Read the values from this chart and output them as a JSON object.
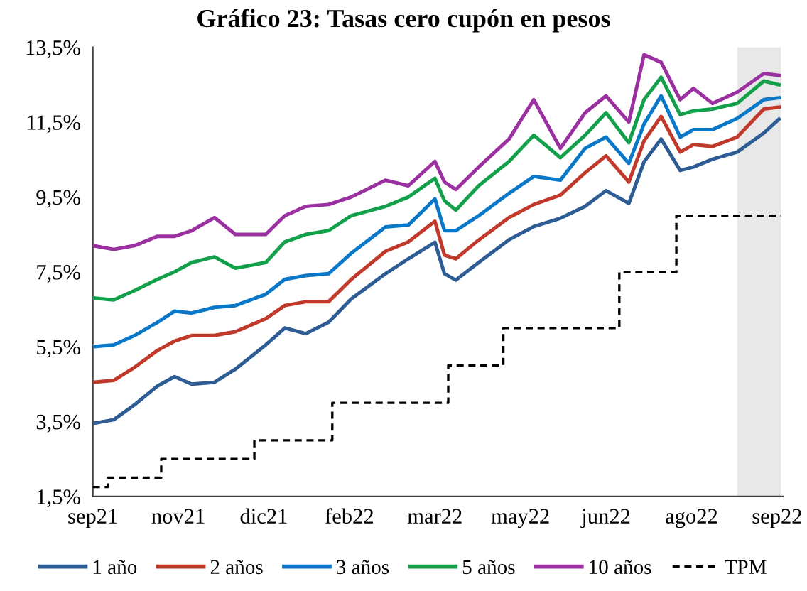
{
  "chart_data": {
    "type": "line",
    "title": "Gráfico 23: Tasas cero cupón en pesos",
    "xlim": [
      "2021-09-28",
      "2022-09-26"
    ],
    "xticks": [
      {
        "value": "2021-09-28",
        "label": "sep21"
      },
      {
        "value": "2021-11-12",
        "label": "nov21"
      },
      {
        "value": "2021-12-27",
        "label": "dic21"
      },
      {
        "value": "2022-02-10",
        "label": "feb22"
      },
      {
        "value": "2022-03-27",
        "label": "mar22"
      },
      {
        "value": "2022-05-11",
        "label": "may22"
      },
      {
        "value": "2022-06-25",
        "label": "jun22"
      },
      {
        "value": "2022-08-09",
        "label": "ago22"
      },
      {
        "value": "2022-09-23",
        "label": "sep22"
      }
    ],
    "ylim": [
      1.5,
      13.5
    ],
    "yticks": [
      {
        "value": 1.5,
        "label": "1,5%"
      },
      {
        "value": 3.5,
        "label": "3,5%"
      },
      {
        "value": 5.5,
        "label": "5,5%"
      },
      {
        "value": 7.5,
        "label": "7,5%"
      },
      {
        "value": 9.5,
        "label": "9,5%"
      },
      {
        "value": 11.5,
        "label": "11,5%"
      },
      {
        "value": 13.5,
        "label": "13,5%"
      }
    ],
    "x": [
      "2021-09-28",
      "2021-10-09",
      "2021-10-20",
      "2021-11-01",
      "2021-11-10",
      "2021-11-19",
      "2021-12-01",
      "2021-12-12",
      "2021-12-28",
      "2022-01-07",
      "2022-01-18",
      "2022-01-30",
      "2022-02-11",
      "2022-03-01",
      "2022-03-13",
      "2022-03-27",
      "2022-04-01",
      "2022-04-07",
      "2022-04-19",
      "2022-05-05",
      "2022-05-18",
      "2022-06-01",
      "2022-06-14",
      "2022-06-25",
      "2022-07-07",
      "2022-07-15",
      "2022-07-24",
      "2022-08-03",
      "2022-08-10",
      "2022-08-20",
      "2022-09-02",
      "2022-09-16",
      "2022-09-24"
    ],
    "grid": false,
    "legend": "bottom",
    "marker": "none",
    "bands": [
      {
        "axis": "x",
        "from": "2022-09-02",
        "to": "2022-09-25",
        "color": "#e8e8e8"
      }
    ],
    "series": [
      {
        "name": "1 año",
        "color": "#2e5c94",
        "values": [
          3.45,
          3.55,
          3.95,
          4.45,
          4.7,
          4.5,
          4.55,
          4.9,
          5.55,
          6.0,
          5.85,
          6.15,
          6.78,
          7.45,
          7.85,
          8.29,
          7.45,
          7.28,
          7.75,
          8.36,
          8.71,
          8.93,
          9.25,
          9.67,
          9.33,
          10.44,
          11.05,
          10.21,
          10.3,
          10.51,
          10.7,
          11.21,
          11.58
        ]
      },
      {
        "name": "2 años",
        "color": "#c0392b",
        "values": [
          4.55,
          4.6,
          4.95,
          5.4,
          5.65,
          5.8,
          5.8,
          5.9,
          6.25,
          6.6,
          6.7,
          6.7,
          7.3,
          8.05,
          8.3,
          8.85,
          7.95,
          7.85,
          8.35,
          8.95,
          9.3,
          9.55,
          10.15,
          10.6,
          9.9,
          11.0,
          11.65,
          10.7,
          10.9,
          10.85,
          11.1,
          11.85,
          11.9
        ]
      },
      {
        "name": "3 años",
        "color": "#0a78c8",
        "values": [
          5.5,
          5.55,
          5.8,
          6.15,
          6.45,
          6.4,
          6.55,
          6.6,
          6.9,
          7.3,
          7.4,
          7.45,
          8.0,
          8.7,
          8.75,
          9.45,
          8.6,
          8.6,
          9.0,
          9.6,
          10.05,
          9.95,
          10.8,
          11.1,
          10.4,
          11.45,
          12.2,
          11.1,
          11.3,
          11.3,
          11.6,
          12.1,
          12.15
        ]
      },
      {
        "name": "5 años",
        "color": "#12a04a",
        "values": [
          6.8,
          6.75,
          7.0,
          7.3,
          7.5,
          7.75,
          7.9,
          7.6,
          7.75,
          8.3,
          8.5,
          8.6,
          9.0,
          9.25,
          9.5,
          10.0,
          9.4,
          9.15,
          9.8,
          10.45,
          11.15,
          10.55,
          11.15,
          11.75,
          10.95,
          12.1,
          12.7,
          11.7,
          11.8,
          11.85,
          12.0,
          12.6,
          12.5
        ]
      },
      {
        "name": "10 años",
        "color": "#9b30a0",
        "values": [
          8.2,
          8.1,
          8.2,
          8.45,
          8.45,
          8.6,
          8.95,
          8.5,
          8.5,
          9.0,
          9.25,
          9.3,
          9.5,
          9.95,
          9.8,
          10.45,
          9.9,
          9.7,
          10.3,
          11.05,
          12.1,
          10.8,
          11.75,
          12.2,
          11.5,
          13.3,
          13.1,
          12.1,
          12.4,
          12.0,
          12.3,
          12.8,
          12.75
        ]
      },
      {
        "name": "TPM",
        "color": "#000000",
        "type": "step",
        "line_style": "dashed",
        "x": [
          "2021-09-28",
          "2021-10-06",
          "2021-11-03",
          "2021-12-22",
          "2022-02-01",
          "2022-04-03",
          "2022-05-02",
          "2022-07-02",
          "2022-08-01",
          "2022-09-25"
        ],
        "values": [
          1.75,
          2.0,
          2.5,
          3.0,
          4.0,
          5.0,
          6.0,
          7.5,
          9.0,
          9.0
        ]
      }
    ]
  }
}
